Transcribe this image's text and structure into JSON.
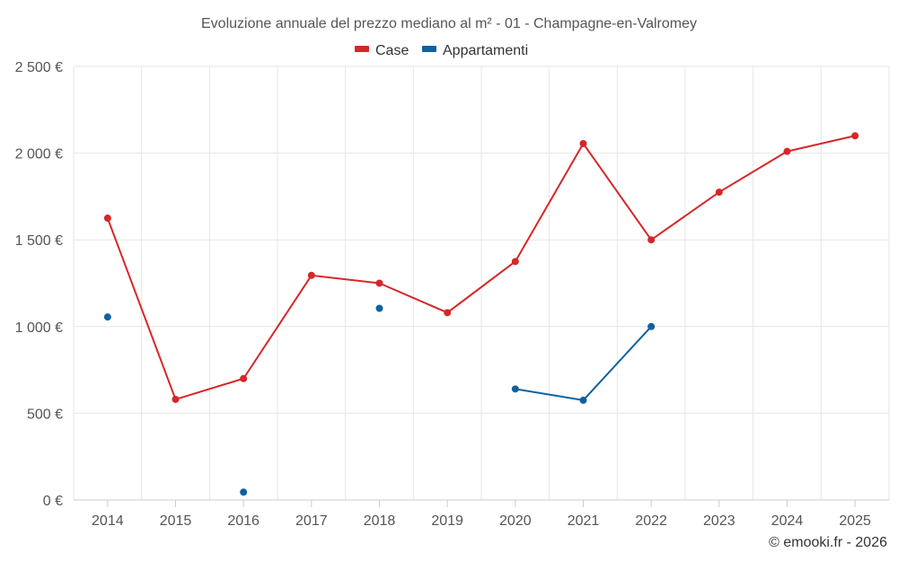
{
  "credit": "© emooki.fr - 2026",
  "chart_data": {
    "type": "line",
    "title": "Evoluzione annuale del prezzo mediano al m² - 01 - Champagne-en-Valromey",
    "xlabel": "",
    "ylabel": "",
    "categories": [
      "2014",
      "2015",
      "2016",
      "2017",
      "2018",
      "2019",
      "2020",
      "2021",
      "2022",
      "2023",
      "2024",
      "2025"
    ],
    "ylim": [
      0,
      2500
    ],
    "yticks": [
      0,
      500,
      1000,
      1500,
      2000,
      2500
    ],
    "ytick_labels": [
      "0 €",
      "500 €",
      "1 000 €",
      "1 500 €",
      "2 000 €",
      "2 500 €"
    ],
    "grid": true,
    "legend_position": "top-center",
    "series": [
      {
        "name": "Case",
        "color": "#d62728",
        "values": [
          1625,
          580,
          700,
          1295,
          1250,
          1080,
          1375,
          2055,
          1500,
          1775,
          2010,
          2100
        ]
      },
      {
        "name": "Appartamenti",
        "color": "#0f62a0",
        "values": [
          1055,
          null,
          45,
          null,
          1105,
          null,
          640,
          575,
          1000,
          null,
          null,
          null
        ]
      }
    ]
  }
}
